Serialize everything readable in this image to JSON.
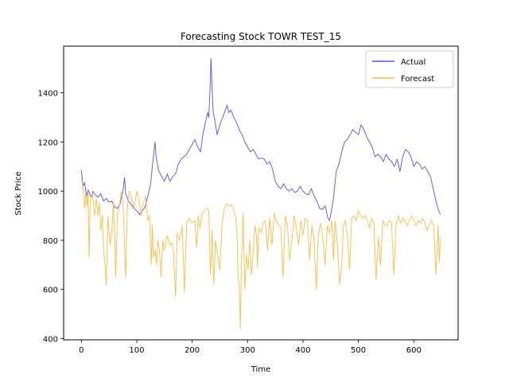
{
  "chart_data": {
    "type": "line",
    "title": "Forecasting Stock TOWR TEST_15",
    "xlabel": "Time",
    "ylabel": "Stock Price",
    "xlim": [
      -32,
      680
    ],
    "ylim": [
      395,
      1590
    ],
    "xticks": [
      0,
      100,
      200,
      300,
      400,
      500,
      600
    ],
    "yticks": [
      400,
      600,
      800,
      1000,
      1200,
      1400
    ],
    "grid": false,
    "legend_position": "top-right",
    "series": [
      {
        "name": "Actual",
        "color": "#3333ee",
        "points": [
          [
            0,
            1085
          ],
          [
            3,
            1020
          ],
          [
            6,
            1035
          ],
          [
            9,
            980
          ],
          [
            12,
            1005
          ],
          [
            15,
            990
          ],
          [
            18,
            975
          ],
          [
            21,
            1000
          ],
          [
            25,
            985
          ],
          [
            30,
            975
          ],
          [
            35,
            990
          ],
          [
            40,
            960
          ],
          [
            45,
            970
          ],
          [
            50,
            955
          ],
          [
            55,
            960
          ],
          [
            60,
            935
          ],
          [
            65,
            930
          ],
          [
            70,
            950
          ],
          [
            75,
            1000
          ],
          [
            78,
            1055
          ],
          [
            80,
            990
          ],
          [
            85,
            960
          ],
          [
            90,
            945
          ],
          [
            95,
            930
          ],
          [
            100,
            920
          ],
          [
            105,
            905
          ],
          [
            110,
            920
          ],
          [
            115,
            935
          ],
          [
            120,
            980
          ],
          [
            125,
            1030
          ],
          [
            128,
            1100
          ],
          [
            130,
            1140
          ],
          [
            133,
            1200
          ],
          [
            135,
            1140
          ],
          [
            140,
            1080
          ],
          [
            145,
            1060
          ],
          [
            150,
            1040
          ],
          [
            155,
            1070
          ],
          [
            160,
            1040
          ],
          [
            165,
            1060
          ],
          [
            170,
            1070
          ],
          [
            175,
            1110
          ],
          [
            180,
            1130
          ],
          [
            185,
            1140
          ],
          [
            190,
            1150
          ],
          [
            195,
            1170
          ],
          [
            200,
            1190
          ],
          [
            205,
            1210
          ],
          [
            210,
            1180
          ],
          [
            215,
            1160
          ],
          [
            220,
            1240
          ],
          [
            225,
            1290
          ],
          [
            228,
            1320
          ],
          [
            230,
            1300
          ],
          [
            232,
            1400
          ],
          [
            234,
            1540
          ],
          [
            236,
            1420
          ],
          [
            238,
            1320
          ],
          [
            240,
            1300
          ],
          [
            245,
            1230
          ],
          [
            250,
            1270
          ],
          [
            255,
            1300
          ],
          [
            260,
            1330
          ],
          [
            263,
            1350
          ],
          [
            266,
            1320
          ],
          [
            270,
            1330
          ],
          [
            275,
            1300
          ],
          [
            280,
            1280
          ],
          [
            285,
            1250
          ],
          [
            290,
            1230
          ],
          [
            295,
            1200
          ],
          [
            300,
            1180
          ],
          [
            305,
            1160
          ],
          [
            310,
            1170
          ],
          [
            315,
            1150
          ],
          [
            320,
            1130
          ],
          [
            325,
            1135
          ],
          [
            330,
            1130
          ],
          [
            335,
            1110
          ],
          [
            340,
            1120
          ],
          [
            345,
            1090
          ],
          [
            350,
            1040
          ],
          [
            355,
            1020
          ],
          [
            360,
            1010
          ],
          [
            365,
            1030
          ],
          [
            370,
            1010
          ],
          [
            375,
            1000
          ],
          [
            380,
            1010
          ],
          [
            385,
            995
          ],
          [
            390,
            1000
          ],
          [
            395,
            1020
          ],
          [
            400,
            1000
          ],
          [
            405,
            990
          ],
          [
            410,
            985
          ],
          [
            415,
            1010
          ],
          [
            420,
            980
          ],
          [
            425,
            960
          ],
          [
            430,
            930
          ],
          [
            435,
            925
          ],
          [
            440,
            940
          ],
          [
            445,
            890
          ],
          [
            448,
            880
          ],
          [
            450,
            905
          ],
          [
            455,
            970
          ],
          [
            460,
            1080
          ],
          [
            465,
            1110
          ],
          [
            470,
            1160
          ],
          [
            475,
            1200
          ],
          [
            480,
            1210
          ],
          [
            485,
            1230
          ],
          [
            490,
            1250
          ],
          [
            495,
            1240
          ],
          [
            500,
            1230
          ],
          [
            505,
            1270
          ],
          [
            510,
            1250
          ],
          [
            515,
            1220
          ],
          [
            520,
            1200
          ],
          [
            525,
            1180
          ],
          [
            530,
            1140
          ],
          [
            535,
            1150
          ],
          [
            540,
            1140
          ],
          [
            545,
            1120
          ],
          [
            550,
            1150
          ],
          [
            555,
            1130
          ],
          [
            560,
            1120
          ],
          [
            565,
            1100
          ],
          [
            570,
            1130
          ],
          [
            575,
            1080
          ],
          [
            580,
            1140
          ],
          [
            585,
            1170
          ],
          [
            590,
            1160
          ],
          [
            595,
            1140
          ],
          [
            600,
            1100
          ],
          [
            605,
            1120
          ],
          [
            610,
            1110
          ],
          [
            615,
            1090
          ],
          [
            620,
            1100
          ],
          [
            625,
            1080
          ],
          [
            630,
            1060
          ],
          [
            635,
            1010
          ],
          [
            640,
            960
          ],
          [
            645,
            920
          ],
          [
            648,
            905
          ]
        ]
      },
      {
        "name": "Forecast",
        "color": "#ffb020",
        "points": [
          [
            0,
            1060
          ],
          [
            3,
            1010
          ],
          [
            6,
            930
          ],
          [
            8,
            990
          ],
          [
            10,
            940
          ],
          [
            12,
            1000
          ],
          [
            14,
            730
          ],
          [
            16,
            960
          ],
          [
            20,
            990
          ],
          [
            24,
            900
          ],
          [
            27,
            970
          ],
          [
            30,
            900
          ],
          [
            33,
            950
          ],
          [
            35,
            840
          ],
          [
            38,
            900
          ],
          [
            40,
            760
          ],
          [
            43,
            700
          ],
          [
            45,
            620
          ],
          [
            48,
            900
          ],
          [
            52,
            780
          ],
          [
            55,
            840
          ],
          [
            58,
            960
          ],
          [
            62,
            650
          ],
          [
            65,
            900
          ],
          [
            70,
            960
          ],
          [
            72,
            1000
          ],
          [
            75,
            960
          ],
          [
            78,
            780
          ],
          [
            80,
            650
          ],
          [
            83,
            930
          ],
          [
            86,
            1000
          ],
          [
            90,
            980
          ],
          [
            95,
            930
          ],
          [
            100,
            1000
          ],
          [
            104,
            970
          ],
          [
            108,
            900
          ],
          [
            112,
            950
          ],
          [
            116,
            980
          ],
          [
            120,
            880
          ],
          [
            123,
            900
          ],
          [
            126,
            700
          ],
          [
            128,
            860
          ],
          [
            130,
            730
          ],
          [
            133,
            760
          ],
          [
            136,
            700
          ],
          [
            138,
            800
          ],
          [
            141,
            760
          ],
          [
            144,
            650
          ],
          [
            147,
            800
          ],
          [
            150,
            760
          ],
          [
            155,
            820
          ],
          [
            160,
            780
          ],
          [
            163,
            790
          ],
          [
            166,
            760
          ],
          [
            170,
            570
          ],
          [
            173,
            830
          ],
          [
            177,
            800
          ],
          [
            182,
            860
          ],
          [
            186,
            590
          ],
          [
            190,
            870
          ],
          [
            195,
            890
          ],
          [
            200,
            870
          ],
          [
            205,
            880
          ],
          [
            208,
            770
          ],
          [
            211,
            900
          ],
          [
            214,
            850
          ],
          [
            218,
            910
          ],
          [
            222,
            920
          ],
          [
            226,
            930
          ],
          [
            230,
            920
          ],
          [
            233,
            660
          ],
          [
            236,
            840
          ],
          [
            239,
            620
          ],
          [
            242,
            800
          ],
          [
            246,
            740
          ],
          [
            250,
            680
          ],
          [
            254,
            870
          ],
          [
            258,
            930
          ],
          [
            262,
            950
          ],
          [
            266,
            940
          ],
          [
            270,
            945
          ],
          [
            274,
            930
          ],
          [
            278,
            900
          ],
          [
            281,
            830
          ],
          [
            283,
            640
          ],
          [
            285,
            620
          ],
          [
            287,
            440
          ],
          [
            289,
            720
          ],
          [
            292,
            910
          ],
          [
            295,
            600
          ],
          [
            298,
            740
          ],
          [
            301,
            680
          ],
          [
            304,
            800
          ],
          [
            307,
            660
          ],
          [
            310,
            740
          ],
          [
            313,
            860
          ],
          [
            316,
            820
          ],
          [
            318,
            690
          ],
          [
            320,
            850
          ],
          [
            324,
            830
          ],
          [
            328,
            870
          ],
          [
            332,
            880
          ],
          [
            336,
            760
          ],
          [
            340,
            890
          ],
          [
            344,
            780
          ],
          [
            348,
            910
          ],
          [
            352,
            880
          ],
          [
            356,
            860
          ],
          [
            360,
            850
          ],
          [
            364,
            650
          ],
          [
            368,
            900
          ],
          [
            372,
            860
          ],
          [
            376,
            720
          ],
          [
            380,
            800
          ],
          [
            384,
            900
          ],
          [
            388,
            850
          ],
          [
            392,
            780
          ],
          [
            396,
            880
          ],
          [
            400,
            820
          ],
          [
            404,
            890
          ],
          [
            408,
            880
          ],
          [
            412,
            720
          ],
          [
            416,
            860
          ],
          [
            420,
            800
          ],
          [
            424,
            600
          ],
          [
            428,
            830
          ],
          [
            432,
            870
          ],
          [
            436,
            800
          ],
          [
            440,
            700
          ],
          [
            444,
            860
          ],
          [
            448,
            830
          ],
          [
            452,
            880
          ],
          [
            455,
            720
          ],
          [
            458,
            880
          ],
          [
            462,
            790
          ],
          [
            466,
            620
          ],
          [
            470,
            700
          ],
          [
            473,
            860
          ],
          [
            476,
            880
          ],
          [
            480,
            820
          ],
          [
            484,
            680
          ],
          [
            488,
            890
          ],
          [
            492,
            900
          ],
          [
            496,
            880
          ],
          [
            500,
            920
          ],
          [
            504,
            900
          ],
          [
            508,
            890
          ],
          [
            512,
            900
          ],
          [
            516,
            880
          ],
          [
            520,
            850
          ],
          [
            524,
            890
          ],
          [
            528,
            870
          ],
          [
            532,
            640
          ],
          [
            536,
            810
          ],
          [
            540,
            700
          ],
          [
            544,
            880
          ],
          [
            548,
            860
          ],
          [
            552,
            860
          ],
          [
            556,
            880
          ],
          [
            560,
            870
          ],
          [
            564,
            660
          ],
          [
            568,
            860
          ],
          [
            572,
            900
          ],
          [
            576,
            870
          ],
          [
            580,
            890
          ],
          [
            584,
            880
          ],
          [
            588,
            860
          ],
          [
            592,
            880
          ],
          [
            596,
            900
          ],
          [
            600,
            880
          ],
          [
            604,
            860
          ],
          [
            608,
            880
          ],
          [
            612,
            870
          ],
          [
            616,
            890
          ],
          [
            620,
            870
          ],
          [
            624,
            840
          ],
          [
            628,
            860
          ],
          [
            632,
            880
          ],
          [
            636,
            860
          ],
          [
            640,
            660
          ],
          [
            644,
            860
          ],
          [
            646,
            710
          ],
          [
            648,
            810
          ]
        ]
      }
    ]
  }
}
